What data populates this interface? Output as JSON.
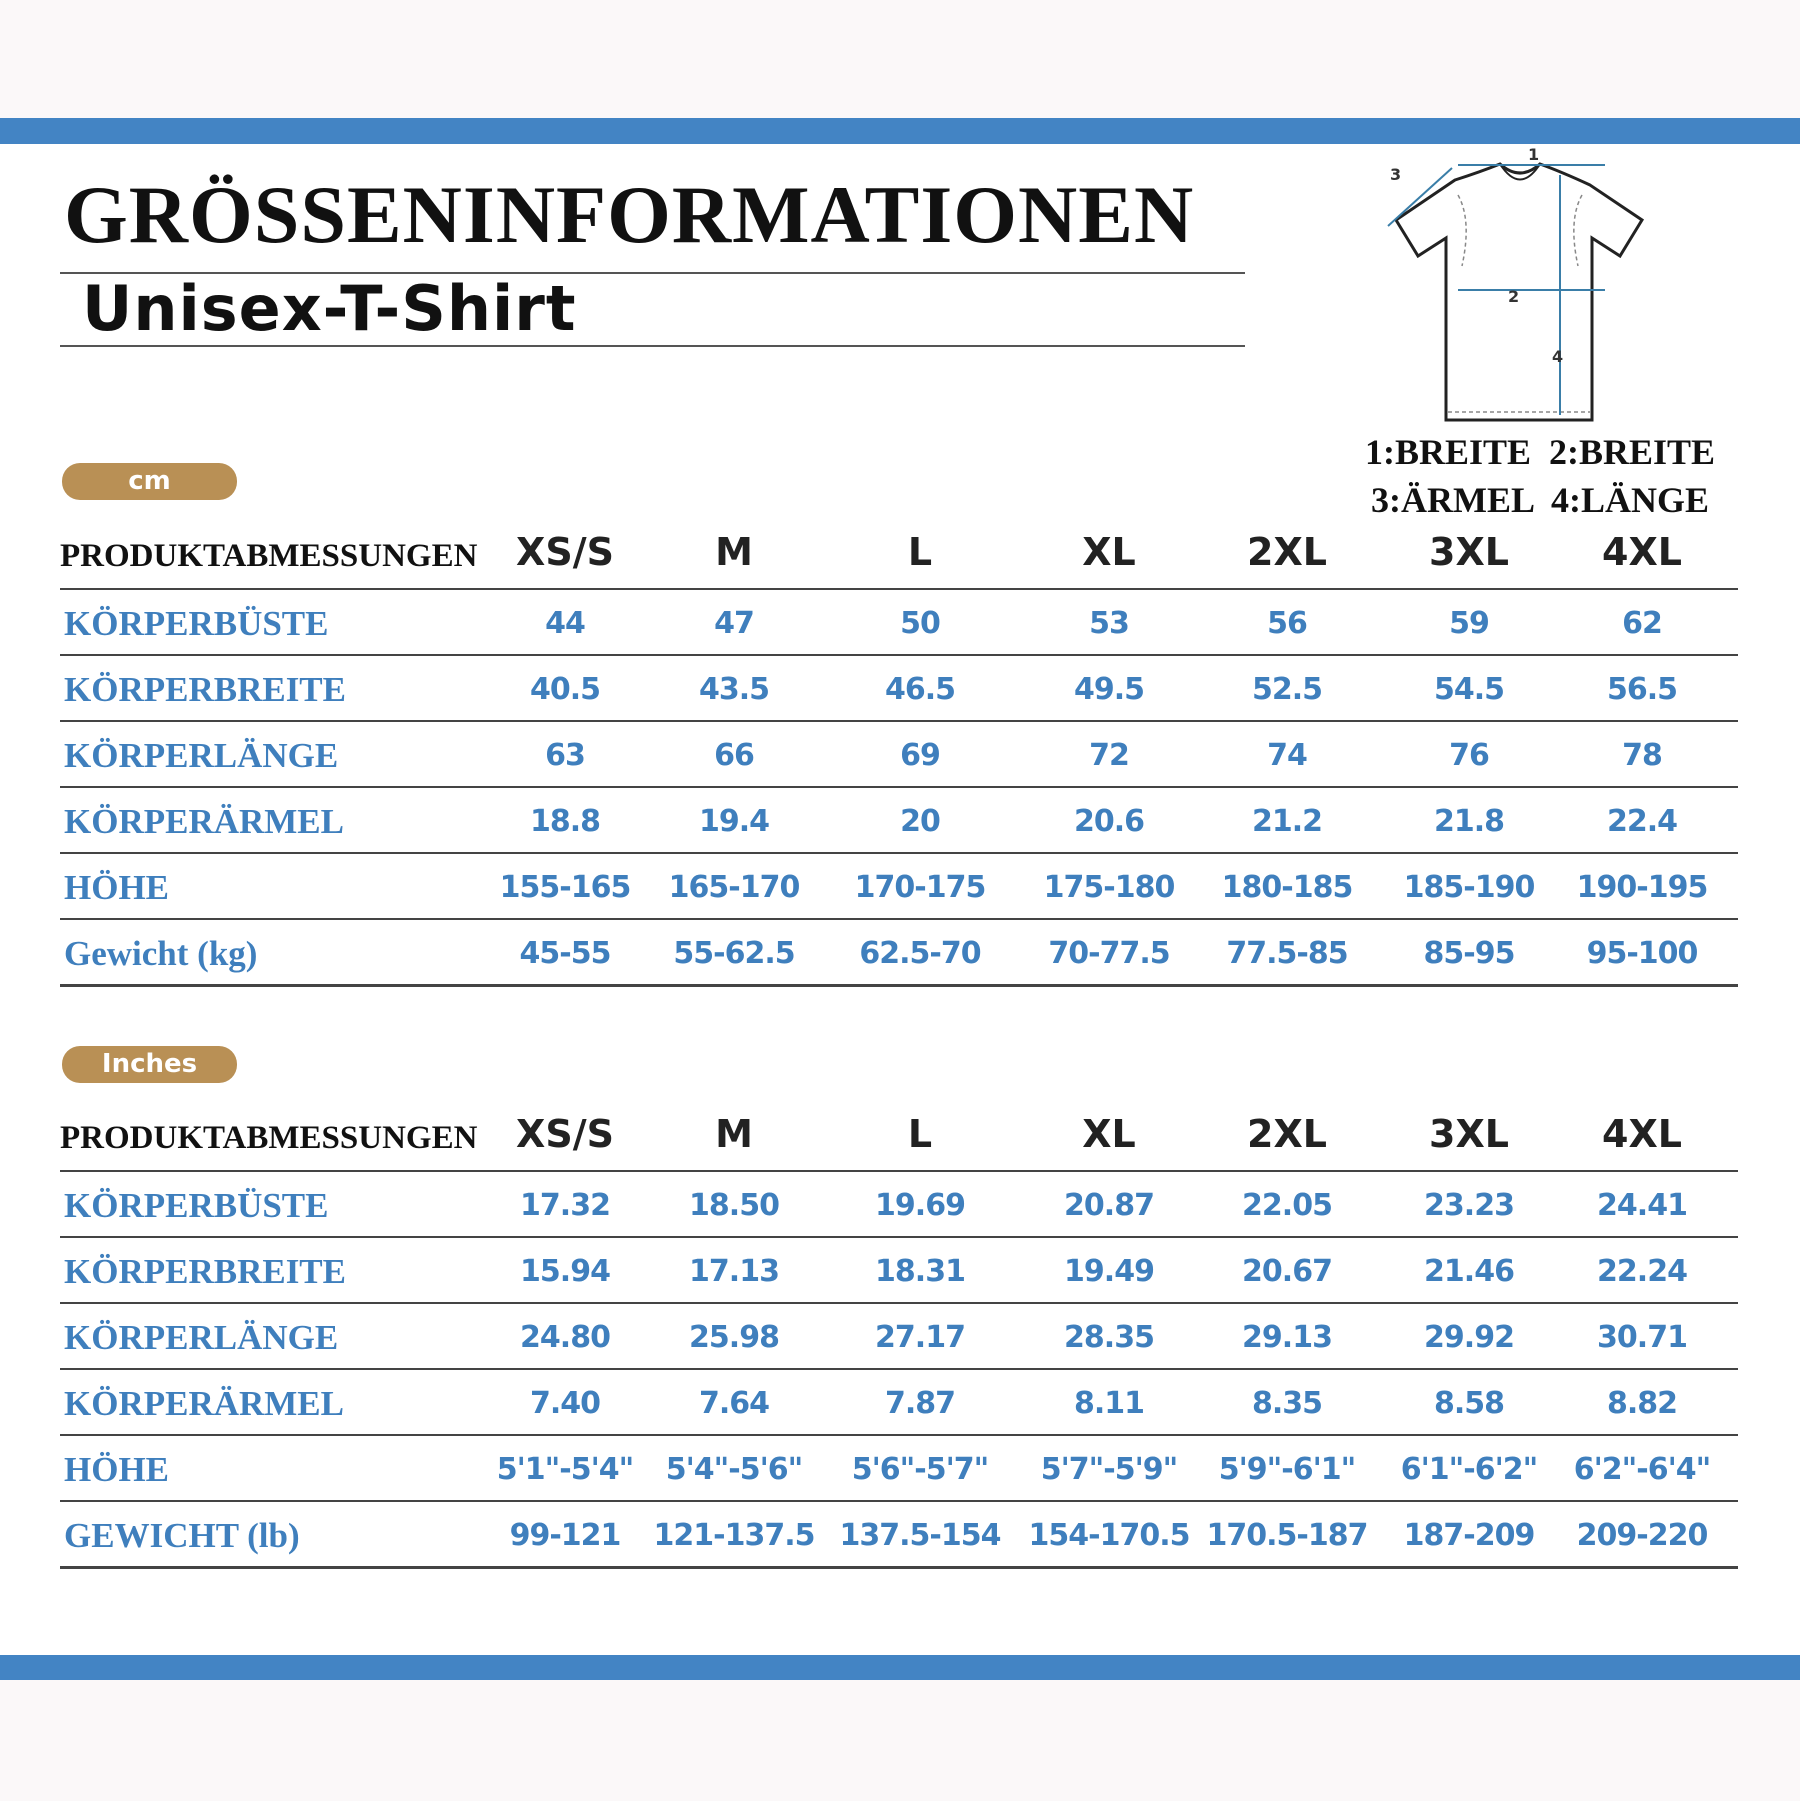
{
  "title": "GRÖSSENINFORMATIONEN",
  "subtitle": "Unisex-T-Shirt",
  "diagram": {
    "labels": [
      "1",
      "2",
      "3",
      "4"
    ],
    "legend_line1": "1:BREITE  2:BREITE",
    "legend_line2": "3:ÄRMEL  4:LÄNGE"
  },
  "colors": {
    "accent_bar": "#4384c4",
    "pill": "#b99055",
    "value_text": "#3f7fbd"
  },
  "sizes": [
    "XS/S",
    "M",
    "L",
    "XL",
    "2XL",
    "3XL",
    "4XL"
  ],
  "tables": [
    {
      "unit": "cm",
      "header_label": "PRODUKTABMESSUNGEN",
      "rows": [
        {
          "label": "KÖRPERBÜSTE",
          "values": [
            "44",
            "47",
            "50",
            "53",
            "56",
            "59",
            "62"
          ]
        },
        {
          "label": "KÖRPERBREITE",
          "values": [
            "40.5",
            "43.5",
            "46.5",
            "49.5",
            "52.5",
            "54.5",
            "56.5"
          ]
        },
        {
          "label": "KÖRPERLÄNGE",
          "values": [
            "63",
            "66",
            "69",
            "72",
            "74",
            "76",
            "78"
          ]
        },
        {
          "label": "KÖRPERÄRMEL",
          "values": [
            "18.8",
            "19.4",
            "20",
            "20.6",
            "21.2",
            "21.8",
            "22.4"
          ]
        },
        {
          "label": "HÖHE",
          "values": [
            "155-165",
            "165-170",
            "170-175",
            "175-180",
            "180-185",
            "185-190",
            "190-195"
          ]
        },
        {
          "label": "Gewicht (kg)",
          "values": [
            "45-55",
            "55-62.5",
            "62.5-70",
            "70-77.5",
            "77.5-85",
            "85-95",
            "95-100"
          ]
        }
      ]
    },
    {
      "unit": "Inches",
      "header_label": "PRODUKTABMESSUNGEN",
      "rows": [
        {
          "label": "KÖRPERBÜSTE",
          "values": [
            "17.32",
            "18.50",
            "19.69",
            "20.87",
            "22.05",
            "23.23",
            "24.41"
          ]
        },
        {
          "label": "KÖRPERBREITE",
          "values": [
            "15.94",
            "17.13",
            "18.31",
            "19.49",
            "20.67",
            "21.46",
            "22.24"
          ]
        },
        {
          "label": "KÖRPERLÄNGE",
          "values": [
            "24.80",
            "25.98",
            "27.17",
            "28.35",
            "29.13",
            "29.92",
            "30.71"
          ]
        },
        {
          "label": "KÖRPERÄRMEL",
          "values": [
            "7.40",
            "7.64",
            "7.87",
            "8.11",
            "8.35",
            "8.58",
            "8.82"
          ]
        },
        {
          "label": "HÖHE",
          "values": [
            "5'1\"-5'4\"",
            "5'4\"-5'6\"",
            "5'6\"-5'7\"",
            "5'7\"-5'9\"",
            "5'9\"-6'1\"",
            "6'1\"-6'2\"",
            "6'2\"-6'4\""
          ]
        },
        {
          "label": "GEWICHT (lb)",
          "values": [
            "99-121",
            "121-137.5",
            "137.5-154",
            "154-170.5",
            "170.5-187",
            "187-209",
            "209-220"
          ]
        }
      ]
    }
  ]
}
